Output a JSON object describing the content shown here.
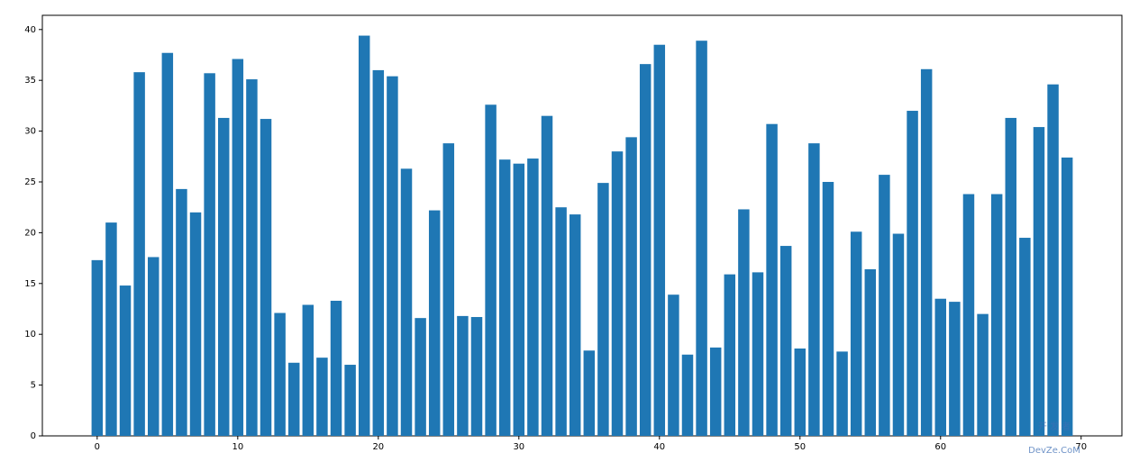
{
  "chart_data": {
    "type": "bar",
    "color": "#1f77b4",
    "x": [
      0,
      1,
      2,
      3,
      4,
      5,
      6,
      7,
      8,
      9,
      10,
      11,
      12,
      13,
      14,
      15,
      16,
      17,
      18,
      19,
      20,
      21,
      22,
      23,
      24,
      25,
      26,
      27,
      28,
      29,
      30,
      31,
      32,
      33,
      34,
      35,
      36,
      37,
      38,
      39,
      40,
      41,
      42,
      43,
      44,
      45,
      46,
      47,
      48,
      49,
      50,
      51,
      52,
      53,
      54,
      55,
      56,
      57,
      58,
      59,
      60,
      61,
      62,
      63,
      64,
      65,
      66,
      67,
      68,
      69
    ],
    "values": [
      17.3,
      21.0,
      14.8,
      35.8,
      17.6,
      37.7,
      24.3,
      22.0,
      35.7,
      31.3,
      37.1,
      35.1,
      31.2,
      12.1,
      7.2,
      12.9,
      7.7,
      13.3,
      7.0,
      39.4,
      36.0,
      35.4,
      26.3,
      11.6,
      22.2,
      28.8,
      11.8,
      11.7,
      32.6,
      27.2,
      26.8,
      27.3,
      31.5,
      22.5,
      21.8,
      8.4,
      24.9,
      28.0,
      29.4,
      36.6,
      38.5,
      13.9,
      8.0,
      38.9,
      8.7,
      15.9,
      22.3,
      16.1,
      30.7,
      18.7,
      8.6,
      28.8,
      25.0,
      8.3,
      20.1,
      16.4,
      25.7,
      19.9,
      32.0,
      36.1,
      13.5,
      13.2,
      23.8,
      12.0,
      23.8,
      31.3,
      19.5,
      30.4,
      34.6,
      27.4
    ],
    "xlim": [
      -3.9,
      72.9
    ],
    "xticks": [
      0,
      10,
      20,
      30,
      40,
      50,
      60,
      70
    ],
    "ylim": [
      0,
      41.4
    ],
    "yticks": [
      0,
      5,
      10,
      15,
      20,
      25,
      30,
      35,
      40
    ],
    "watermark": {
      "line1": "开 发 者",
      "line2": "DevZe.CoM"
    }
  }
}
